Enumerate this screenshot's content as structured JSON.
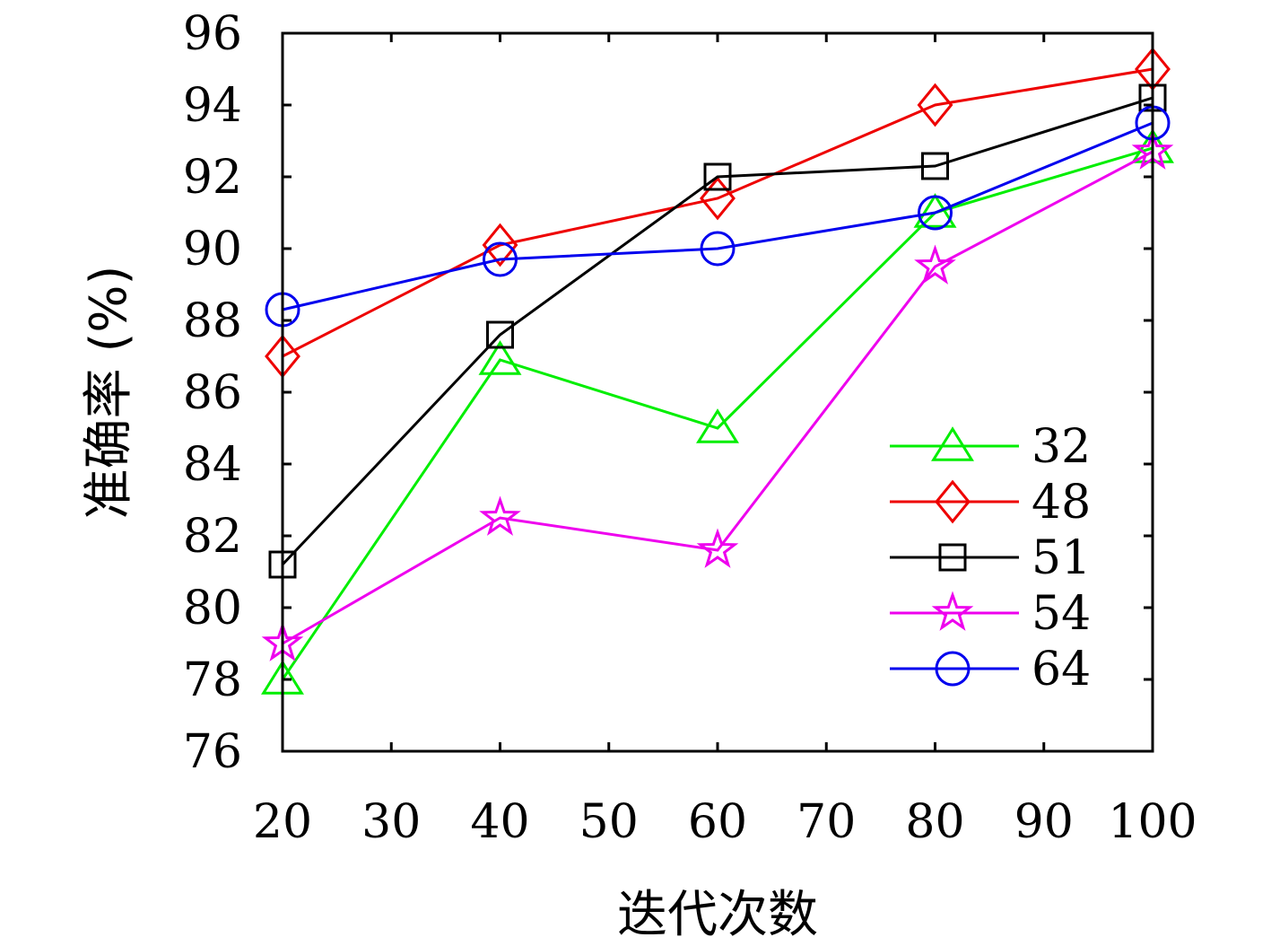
{
  "chart_data": {
    "type": "line",
    "xlabel": "迭代次数",
    "ylabel": "准确率 (%)",
    "xlim": [
      20,
      100
    ],
    "ylim": [
      76,
      96
    ],
    "x_ticks": [
      20,
      30,
      40,
      50,
      60,
      70,
      80,
      90,
      100
    ],
    "y_ticks": [
      76,
      78,
      80,
      82,
      84,
      86,
      88,
      90,
      92,
      94,
      96
    ],
    "grid": false,
    "legend_position": "bottom-right",
    "x": [
      20,
      40,
      60,
      80,
      100
    ],
    "series": [
      {
        "name": "32",
        "color": "#00ee00",
        "marker": "triangle",
        "values": [
          78.0,
          86.9,
          85.0,
          91.0,
          92.8
        ]
      },
      {
        "name": "48",
        "color": "#ee0000",
        "marker": "diamond",
        "values": [
          87.0,
          90.1,
          91.4,
          94.0,
          95.0
        ]
      },
      {
        "name": "51",
        "color": "#000000",
        "marker": "square",
        "values": [
          81.2,
          87.6,
          92.0,
          92.3,
          94.2
        ]
      },
      {
        "name": "54",
        "color": "#ee00ee",
        "marker": "star",
        "values": [
          79.0,
          82.5,
          81.6,
          89.5,
          92.7
        ]
      },
      {
        "name": "64",
        "color": "#0000ee",
        "marker": "circle",
        "values": [
          88.3,
          89.7,
          90.0,
          91.0,
          93.5
        ]
      }
    ]
  }
}
